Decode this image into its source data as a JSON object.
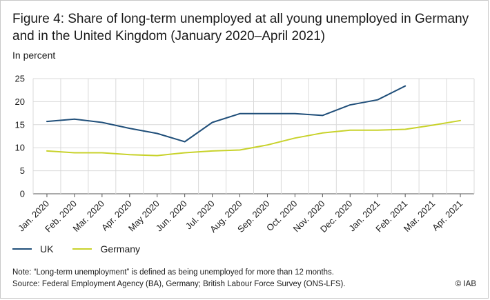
{
  "figure": {
    "title": "Figure 4: Share of long-term unemployed at all young unemployed in Germany and in the United Kingdom (January 2020–April 2021)",
    "unit": "In percent",
    "note": "Note: “Long-term unemployment” is defined as being unemployed for more than 12 months.",
    "source": "Source: Federal Employment Agency (BA), Germany; British Labour Force Survey (ONS-LFS).",
    "copyright": "© IAB"
  },
  "chart_data": {
    "type": "line",
    "title": "Figure 4: Share of long-term unemployed at all young unemployed in Germany and in the United Kingdom (January 2020–April 2021)",
    "ylabel": "In percent",
    "xlabel": "",
    "categories": [
      "Jan. 2020",
      "Feb. 2020",
      "Mar. 2020",
      "Apr. 2020",
      "May 2020",
      "Jun. 2020",
      "Jul. 2020",
      "Aug. 2020",
      "Sep. 2020",
      "Oct. 2020",
      "Nov. 2020",
      "Dec. 2020",
      "Jan. 2021",
      "Feb. 2021",
      "Mar. 2021",
      "Apr. 2021"
    ],
    "ylim": [
      0,
      25
    ],
    "yticks": [
      0,
      5,
      10,
      15,
      20,
      25
    ],
    "grid": true,
    "legend_position": "bottom-left",
    "series": [
      {
        "name": "UK",
        "color": "#1f4e79",
        "values": [
          15.7,
          16.2,
          15.5,
          14.2,
          13.1,
          11.3,
          15.5,
          17.4,
          17.4,
          17.4,
          17.0,
          19.3,
          20.4,
          23.4,
          null,
          null
        ]
      },
      {
        "name": "Germany",
        "color": "#c8d22a",
        "values": [
          9.3,
          8.9,
          8.9,
          8.5,
          8.3,
          8.9,
          9.3,
          9.5,
          10.6,
          12.1,
          13.2,
          13.8,
          13.8,
          14.0,
          14.9,
          15.9
        ]
      }
    ]
  }
}
